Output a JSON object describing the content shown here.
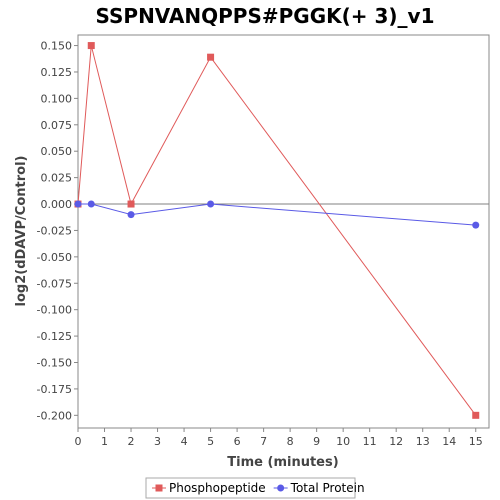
{
  "chart_data": {
    "type": "line",
    "title": "SSPNVANQPPS#PGGK(+ 3)_v1",
    "xlabel": "Time (minutes)",
    "ylabel": "log2(dDAVP/Control)",
    "xlim": [
      0,
      15.5
    ],
    "ylim": [
      -0.212,
      0.16
    ],
    "x_ticks": [
      0,
      1,
      2,
      3,
      4,
      5,
      6,
      7,
      8,
      9,
      10,
      11,
      12,
      13,
      14,
      15
    ],
    "x_tick_labels": [
      "0",
      "1",
      "2",
      "3",
      "4",
      "5",
      "6",
      "7",
      "8",
      "9",
      "10",
      "11",
      "12",
      "13",
      "14",
      "15"
    ],
    "y_ticks": [
      0.15,
      0.125,
      0.1,
      0.075,
      0.05,
      0.025,
      0.0,
      -0.025,
      -0.05,
      -0.075,
      -0.1,
      -0.125,
      -0.15,
      -0.175,
      -0.2
    ],
    "y_tick_labels": [
      "0.150",
      "0.125",
      "0.100",
      "0.075",
      "0.050",
      "0.025",
      "0.000",
      "-0.025",
      "-0.050",
      "-0.075",
      "-0.100",
      "-0.125",
      "-0.150",
      "-0.175",
      "-0.200"
    ],
    "zero_line": true,
    "legend_position": "bottom-center",
    "series": [
      {
        "name": "Phosphopeptide",
        "color": "#e05a5a",
        "marker": "square",
        "points": [
          [
            0,
            0.0
          ],
          [
            0.5,
            0.15
          ],
          [
            2,
            0.0
          ],
          [
            5,
            0.139
          ],
          [
            15,
            -0.2
          ]
        ]
      },
      {
        "name": "Total Protein",
        "color": "#5a5ae6",
        "marker": "circle",
        "points": [
          [
            0,
            0.0
          ],
          [
            0.5,
            0.0
          ],
          [
            2,
            -0.01
          ],
          [
            5,
            0.0
          ],
          [
            15,
            -0.02
          ]
        ]
      }
    ]
  }
}
